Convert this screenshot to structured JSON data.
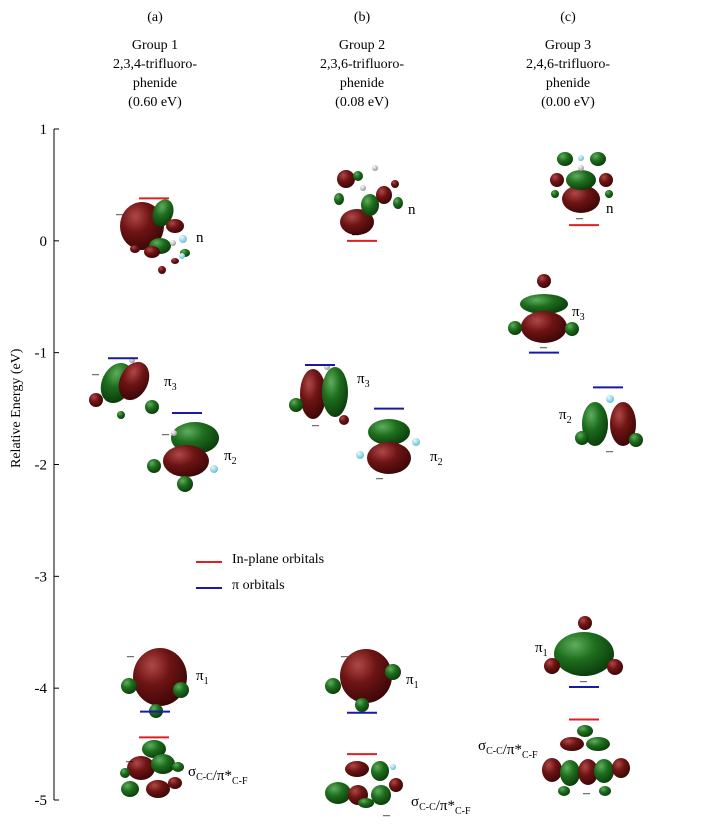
{
  "header": {
    "groups": [
      {
        "letter": "(a)",
        "group": "Group 1",
        "name_line1": "2,3,4-trifluoro-",
        "name_line2": "phenide",
        "energy": "(0.60 eV)"
      },
      {
        "letter": "(b)",
        "group": "Group 2",
        "name_line1": "2,3,6-trifluoro-",
        "name_line2": "phenide",
        "energy": "(0.08 eV)"
      },
      {
        "letter": "(c)",
        "group": "Group 3",
        "name_line1": "2,4,6-trifluoro-",
        "name_line2": "phenide",
        "energy": "(0.00 eV)"
      }
    ]
  },
  "axis": {
    "ylabel": "Relative Energy (eV)",
    "ylim": [
      -5,
      1
    ],
    "ticks": [
      1,
      0,
      -1,
      -2,
      -3,
      -4,
      -5
    ]
  },
  "legend": {
    "in_plane": {
      "label": "In-plane orbitals",
      "color": "#e02020"
    },
    "pi": {
      "label": "π orbitals",
      "color": "#1a1aa8"
    }
  },
  "colors": {
    "lobe_positive": "#1e6e1e",
    "lobe_negative": "#6e1414",
    "fluorine_atom": "#8fd8e8",
    "carbon_atom": "#b8b8b8"
  },
  "chart_data": {
    "type": "energy-level diagram",
    "ylabel": "Relative Energy (eV)",
    "ylim": [
      -5,
      1
    ],
    "groups": [
      "(a)",
      "(b)",
      "(c)"
    ],
    "levels": [
      {
        "group": "(a)",
        "orbital": "n",
        "type": "in-plane",
        "energy": 0.38
      },
      {
        "group": "(a)",
        "orbital": "π3",
        "type": "pi",
        "energy": -1.05
      },
      {
        "group": "(a)",
        "orbital": "π2",
        "type": "pi",
        "energy": -1.54
      },
      {
        "group": "(a)",
        "orbital": "π1",
        "type": "pi",
        "energy": -4.21
      },
      {
        "group": "(a)",
        "orbital": "σC-C/π*C-F",
        "type": "in-plane",
        "energy": -4.44
      },
      {
        "group": "(b)",
        "orbital": "n",
        "type": "in-plane",
        "energy": 0.0
      },
      {
        "group": "(b)",
        "orbital": "π3",
        "type": "pi",
        "energy": -1.11
      },
      {
        "group": "(b)",
        "orbital": "π2",
        "type": "pi",
        "energy": -1.5
      },
      {
        "group": "(b)",
        "orbital": "π1",
        "type": "pi",
        "energy": -4.22
      },
      {
        "group": "(b)",
        "orbital": "σC-C/π*C-F",
        "type": "in-plane",
        "energy": -4.59
      },
      {
        "group": "(c)",
        "orbital": "n",
        "type": "in-plane",
        "energy": 0.14
      },
      {
        "group": "(c)",
        "orbital": "π3",
        "type": "pi",
        "energy": -1.0
      },
      {
        "group": "(c)",
        "orbital": "π2",
        "type": "pi",
        "energy": -1.31
      },
      {
        "group": "(c)",
        "orbital": "π1",
        "type": "pi",
        "energy": -3.99
      },
      {
        "group": "(c)",
        "orbital": "σC-C/π*C-F",
        "type": "in-plane",
        "energy": -4.28
      }
    ]
  }
}
